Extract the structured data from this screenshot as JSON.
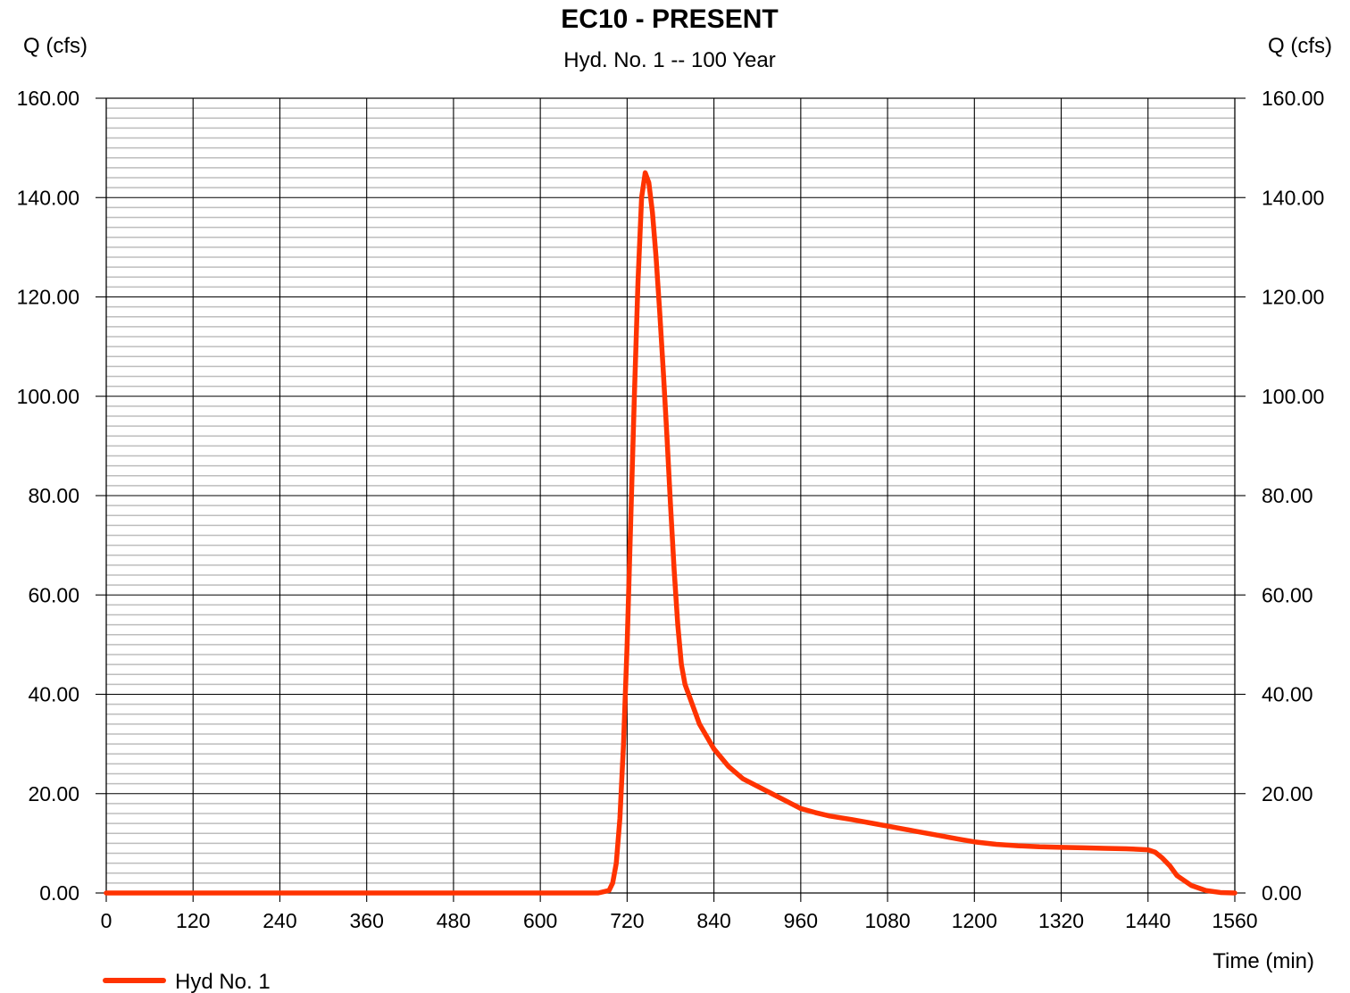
{
  "chart_data": {
    "type": "line",
    "title": "EC10 - PRESENT",
    "subtitle": "Hyd. No. 1 -- 100 Year",
    "ylabel_left": "Q (cfs)",
    "ylabel_right": "Q (cfs)",
    "xlabel": "Time (min)",
    "xlim": [
      0,
      1560
    ],
    "ylim": [
      0,
      160
    ],
    "x_ticks": [
      0,
      120,
      240,
      360,
      480,
      600,
      720,
      840,
      960,
      1080,
      1200,
      1320,
      1440,
      1560
    ],
    "x_tick_labels": [
      "0",
      "120",
      "240",
      "360",
      "480",
      "600",
      "720",
      "840",
      "960",
      "1080",
      "1200",
      "1320",
      "1440",
      "1560"
    ],
    "y_ticks": [
      0,
      20,
      40,
      60,
      80,
      100,
      120,
      140,
      160
    ],
    "y_tick_labels": [
      "0.00",
      "20.00",
      "40.00",
      "60.00",
      "80.00",
      "100.00",
      "120.00",
      "140.00",
      "160.00"
    ],
    "y_minor_step": 2,
    "grid": true,
    "legend_position": "bottom-left",
    "series": [
      {
        "name": "Hyd No. 1",
        "color": "#ff3300",
        "x": [
          0,
          680,
          695,
          700,
          705,
          710,
          715,
          720,
          725,
          730,
          735,
          740,
          745,
          750,
          755,
          760,
          765,
          770,
          775,
          780,
          785,
          790,
          795,
          800,
          805,
          810,
          815,
          820,
          830,
          840,
          860,
          880,
          900,
          920,
          940,
          960,
          980,
          1000,
          1030,
          1060,
          1090,
          1120,
          1150,
          1180,
          1200,
          1230,
          1260,
          1290,
          1320,
          1350,
          1380,
          1410,
          1440,
          1450,
          1460,
          1470,
          1480,
          1500,
          1520,
          1540,
          1560
        ],
        "y": [
          0,
          0,
          0.5,
          2,
          6,
          15,
          30,
          50,
          75,
          100,
          123,
          140,
          145,
          143,
          137,
          128,
          117,
          105,
          92,
          78,
          65,
          54,
          46,
          42,
          40,
          38,
          36,
          34,
          31.5,
          29,
          25.5,
          23,
          21.5,
          20,
          18.5,
          17,
          16.2,
          15.5,
          14.8,
          14,
          13.2,
          12.4,
          11.6,
          10.8,
          10.3,
          9.8,
          9.5,
          9.3,
          9.2,
          9.1,
          9.0,
          8.9,
          8.7,
          8.2,
          7.0,
          5.5,
          3.5,
          1.5,
          0.5,
          0.1,
          0
        ]
      }
    ]
  }
}
